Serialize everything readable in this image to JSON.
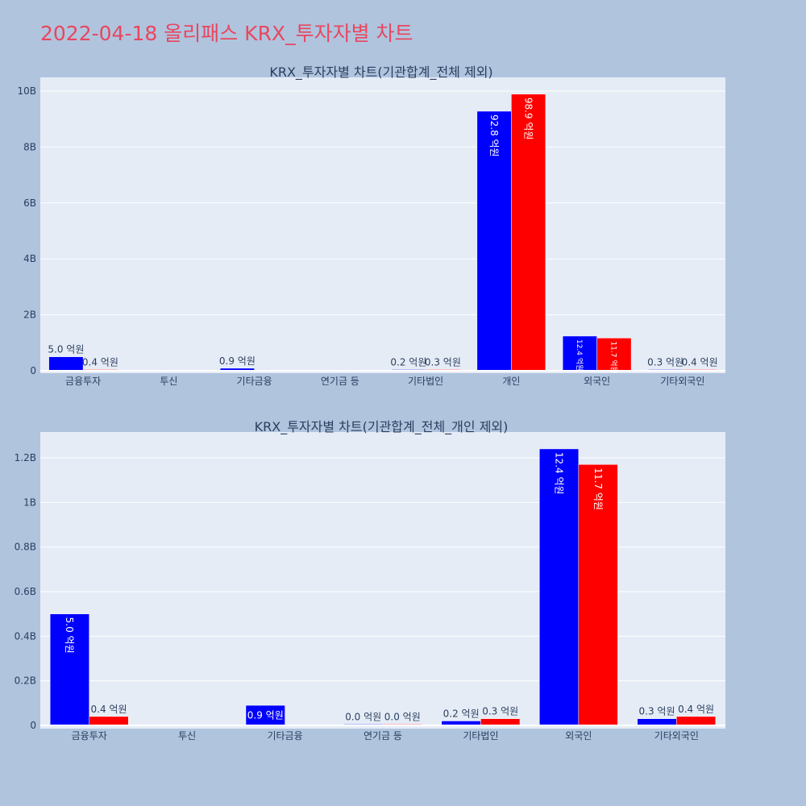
{
  "page_title": "2022-04-18 올리패스 KRX_투자자별 차트",
  "colors": {
    "background": "#b0c4de",
    "plot_bg": "#e5ecf6",
    "grid": "#ffffff",
    "title": "#e8475f",
    "text": "#2a3f5f",
    "series_buy": "#0000ff",
    "series_sell": "#ff0000"
  },
  "chart_data": [
    {
      "type": "bar",
      "title": "KRX_투자자별 차트(기관합계_전체 제외)",
      "xlabel": "",
      "ylabel": "",
      "ylim": [
        0,
        10000000000
      ],
      "yticks": [
        0,
        2000000000,
        4000000000,
        6000000000,
        8000000000,
        10000000000
      ],
      "ytick_labels": [
        "0",
        "2B",
        "4B",
        "6B",
        "8B",
        "10B"
      ],
      "grid": true,
      "categories": [
        "금융투자",
        "투신",
        "기타금융",
        "연기금 등",
        "기타법인",
        "개인",
        "외국인",
        "기타외국인"
      ],
      "series": [
        {
          "color": "#0000ff",
          "values": [
            500000000,
            null,
            90000000,
            null,
            20000000,
            9280000000,
            1240000000,
            30000000
          ],
          "labels": [
            "5.0 억원",
            "",
            "0.9 억원",
            "",
            "0.2 억원",
            "92.8 억원",
            "12.4 억원",
            "0.3 억원"
          ]
        },
        {
          "color": "#ff0000",
          "values": [
            40000000,
            null,
            null,
            null,
            30000000,
            9890000000,
            1170000000,
            40000000
          ],
          "labels": [
            "0.4 억원",
            "",
            "",
            "",
            "0.3 억원",
            "98.9 억원",
            "11.7 억원",
            "0.4 억원"
          ]
        }
      ]
    },
    {
      "type": "bar",
      "title": "KRX_투자자별 차트(기관합계_전체_개인 제외)",
      "xlabel": "",
      "ylabel": "",
      "ylim": [
        0,
        1320000000
      ],
      "yticks": [
        0,
        200000000,
        400000000,
        600000000,
        800000000,
        1000000000,
        1200000000
      ],
      "ytick_labels": [
        "0",
        "0.2B",
        "0.4B",
        "0.6B",
        "0.8B",
        "1B",
        "1.2B"
      ],
      "grid": true,
      "categories": [
        "금융투자",
        "투신",
        "기타금융",
        "연기금 등",
        "기타법인",
        "외국인",
        "기타외국인"
      ],
      "series": [
        {
          "color": "#0000ff",
          "values": [
            500000000,
            null,
            90000000,
            0,
            20000000,
            1240000000,
            30000000
          ],
          "labels": [
            "5.0 억원",
            "",
            "0.9 억원",
            "0.0 억원",
            "0.2 억원",
            "12.4 억원",
            "0.3 억원"
          ]
        },
        {
          "color": "#ff0000",
          "values": [
            40000000,
            null,
            null,
            0,
            30000000,
            1170000000,
            40000000
          ],
          "labels": [
            "0.4 억원",
            "",
            "",
            "0.0 억원",
            "0.3 억원",
            "11.7 억원",
            "0.4 억원"
          ]
        }
      ]
    }
  ]
}
